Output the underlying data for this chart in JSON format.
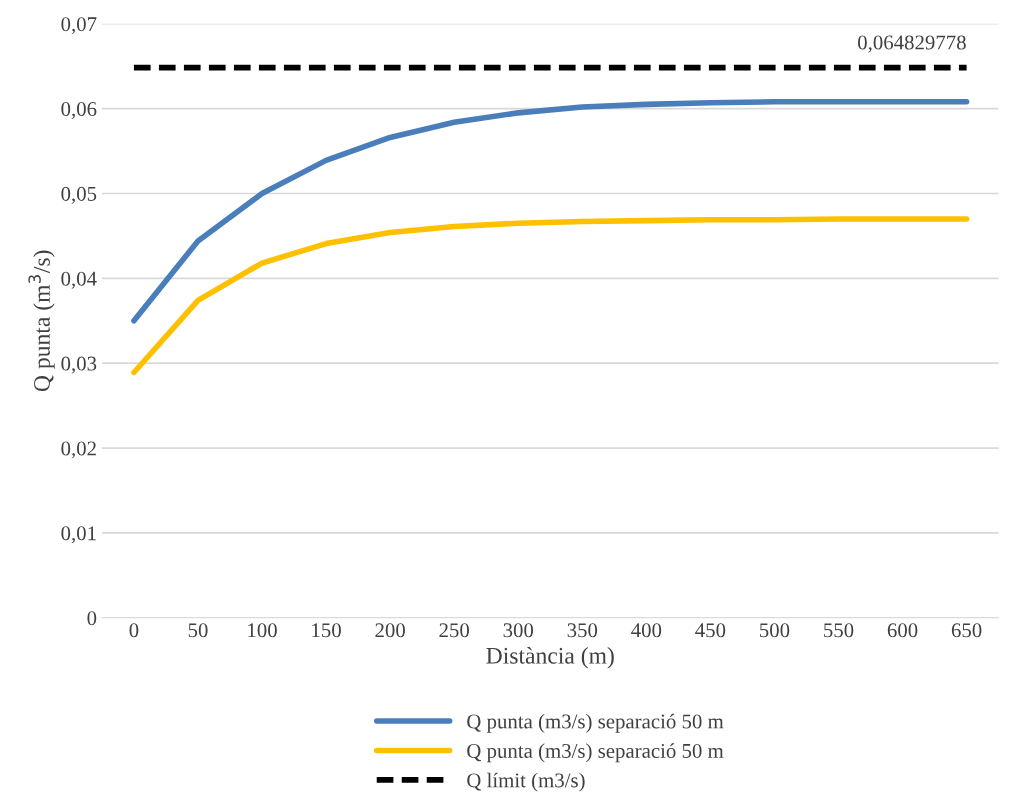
{
  "chart_data": {
    "type": "line",
    "xlabel": "Distància (m)",
    "ylabel": "Q punta (m$^{3}$/s)",
    "categories": [
      "0",
      "50",
      "100",
      "150",
      "200",
      "250",
      "300",
      "350",
      "400",
      "450",
      "500",
      "550",
      "600",
      "650"
    ],
    "series": [
      {
        "name": "Q punta (m3/s) separació 50 m",
        "color": "#4a7ebb",
        "values": [
          0.035,
          0.0444,
          0.05,
          0.0539,
          0.0566,
          0.0584,
          0.0595,
          0.0602,
          0.0605,
          0.0607,
          0.0608,
          0.0608,
          0.0608,
          0.0608
        ]
      },
      {
        "name": "Q punta (m3/s) separació 50 m",
        "color": "#ffc000",
        "values": [
          0.0289,
          0.0374,
          0.0418,
          0.0441,
          0.0454,
          0.0461,
          0.0465,
          0.0467,
          0.0468,
          0.0469,
          0.0469,
          0.047,
          0.047,
          0.047
        ]
      },
      {
        "name": "Q límit (m3/s)",
        "color": "#000000",
        "line_style": "dashed",
        "values": [
          0.064829778,
          0.064829778,
          0.064829778,
          0.064829778,
          0.064829778,
          0.064829778,
          0.064829778,
          0.064829778,
          0.064829778,
          0.064829778,
          0.064829778,
          0.064829778,
          0.064829778,
          0.064829778
        ],
        "value_labels": [
          null,
          null,
          null,
          null,
          null,
          null,
          null,
          null,
          null,
          null,
          null,
          null,
          null,
          "0,064829778"
        ]
      }
    ],
    "ylim": [
      0,
      0.07
    ],
    "yticks": [
      0,
      {
        "value": 0.01,
        "label": "0,01"
      },
      {
        "value": 0.02,
        "label": "0,02"
      },
      {
        "value": 0.03,
        "label": "0,03"
      },
      {
        "value": 0.04,
        "label": "0,04"
      },
      {
        "value": 0.05,
        "label": "0,05"
      },
      {
        "value": 0.06,
        "label": "0,06"
      },
      {
        "value": 0.07,
        "label": "0,07"
      }
    ],
    "grid": "y",
    "legend": "bottom",
    "marker": "none"
  }
}
